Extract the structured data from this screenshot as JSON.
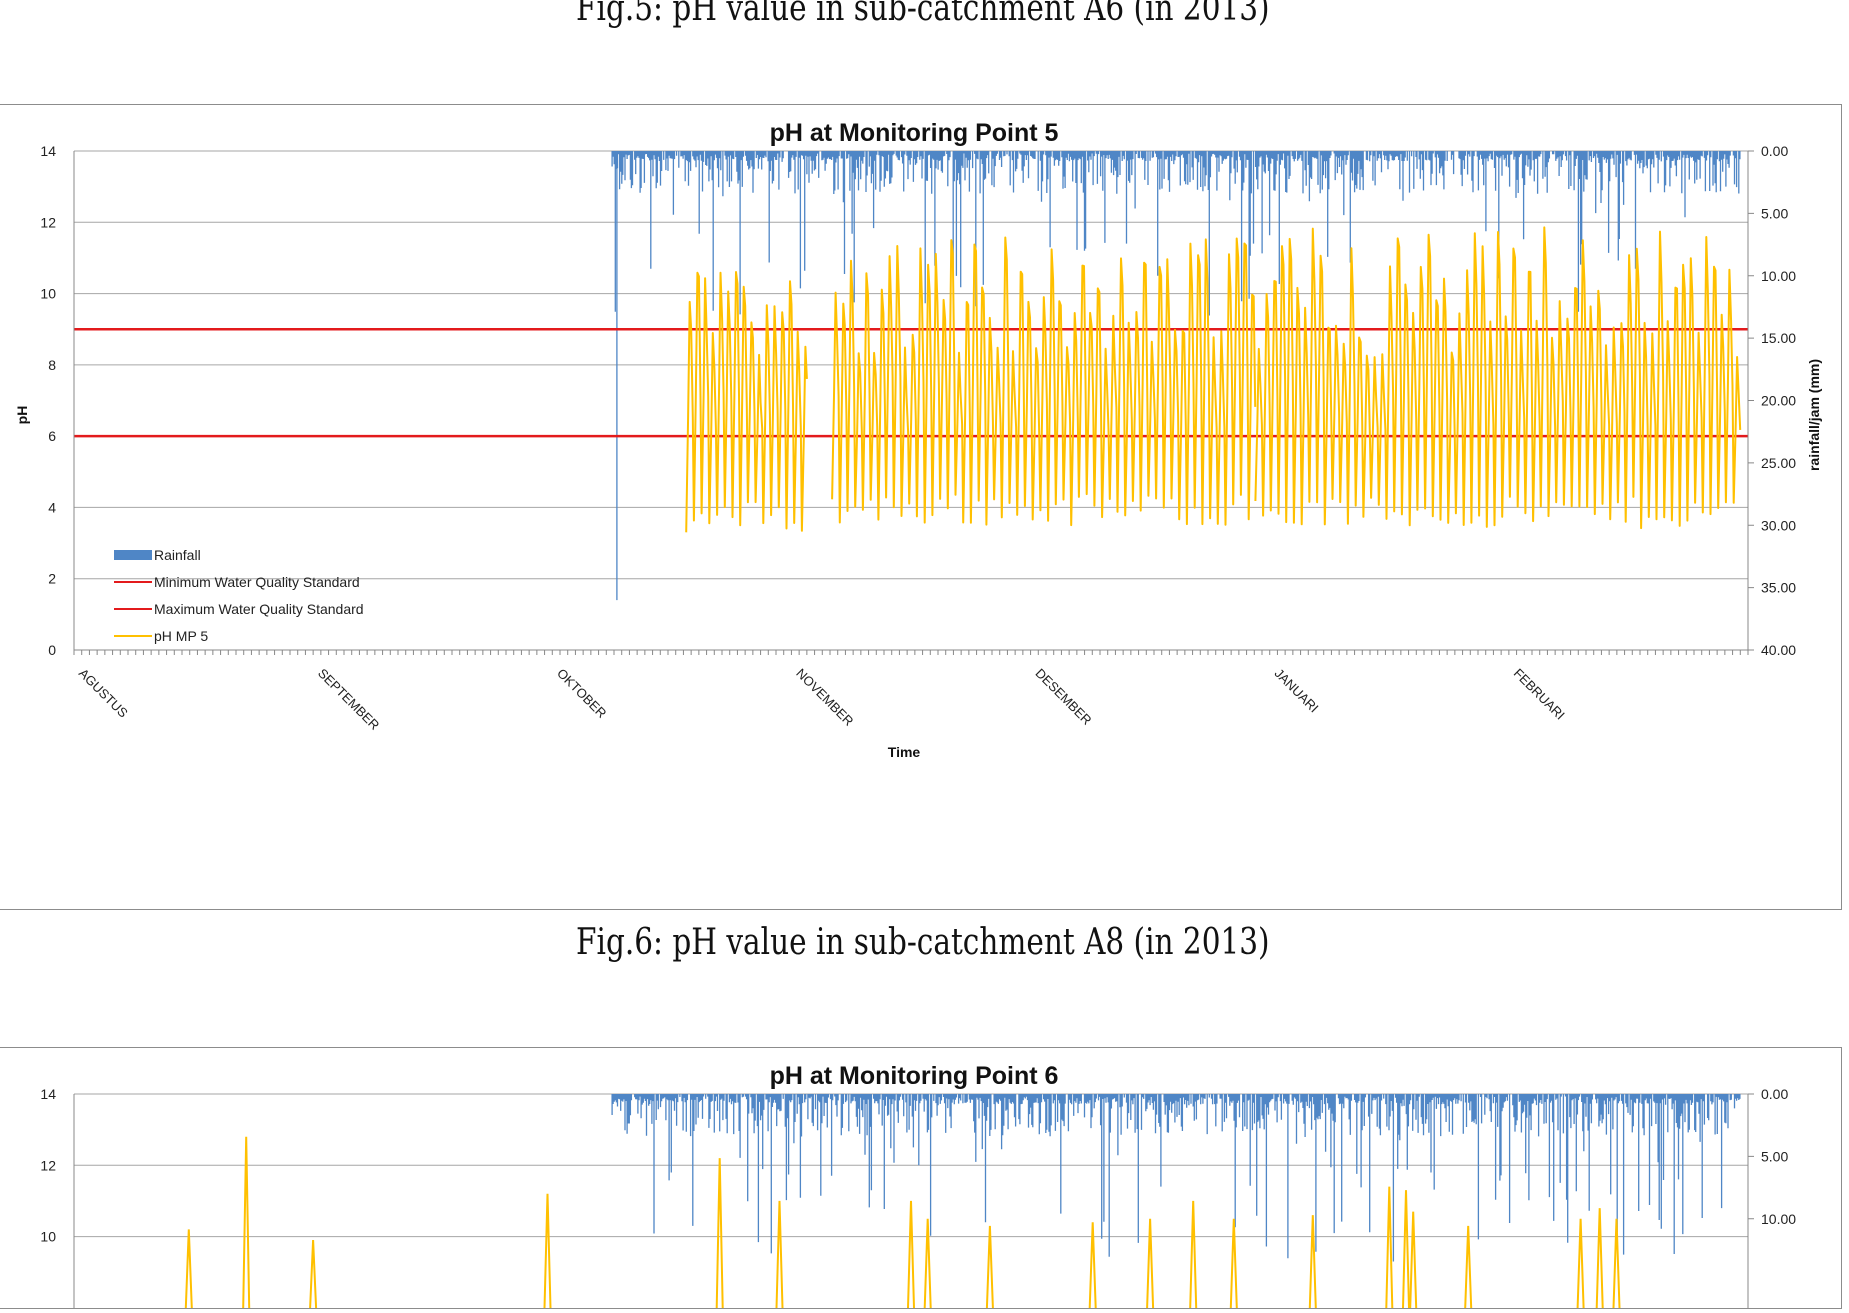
{
  "captions": {
    "top": "Fig.5: pH value in sub-catchment A6 (in 2013)",
    "middle": "Fig.6: pH value in sub-catchment A8 (in 2013)"
  },
  "chart_data": [
    {
      "type": "line",
      "title": "pH at Monitoring Point 5",
      "xlabel": "Time",
      "ylabel": "pH",
      "y2label": "rainfall/jam  (mm)",
      "ylim": [
        0,
        14
      ],
      "y2lim": [
        0,
        40
      ],
      "y2_inverted": true,
      "yticks": [
        "0",
        "2",
        "4",
        "6",
        "8",
        "10",
        "12",
        "14"
      ],
      "y2ticks": [
        "0.00",
        "5.00",
        "10.00",
        "15.00",
        "20.00",
        "25.00",
        "30.00",
        "35.00",
        "40.00"
      ],
      "categories": [
        "AGUSTUS",
        "SEPTEMBER",
        "OKTOBER",
        "NOVEMBER",
        "DESEMBER",
        "JANUARI",
        "FEBRUARI"
      ],
      "grid": true,
      "legend_position": "bottom-left",
      "colors": {
        "rainfall": "#4f86c6",
        "standard": "#e31a1c",
        "ph": "#ffc000",
        "grid": "#a6a6a6"
      },
      "series": [
        {
          "name": "Rainfall",
          "kind": "bar",
          "axis": "secondary",
          "start_month": 2.25,
          "end_month": 6.97,
          "typical_max_mm": 12,
          "notable_peaks": [
            {
              "month": 2.27,
              "mm": 36
            },
            {
              "month": 2.27,
              "mm": 11
            }
          ]
        },
        {
          "name": "Minimum Water Quality Standard",
          "kind": "line",
          "value": 6
        },
        {
          "name": "Maximum Water Quality Standard",
          "kind": "line",
          "value": 9
        },
        {
          "name": "pH MP 5",
          "kind": "line",
          "segments": [
            {
              "start_month": 2.56,
              "end_month": 3.07,
              "min": 3.3,
              "max": 10.8
            },
            {
              "start_month": 3.17,
              "end_month": 4.94,
              "min": 3.5,
              "max": 11.6
            },
            {
              "start_month": 4.94,
              "end_month": 6.97,
              "min": 3.4,
              "max": 12.0
            }
          ]
        }
      ]
    },
    {
      "type": "line",
      "title": "pH at Monitoring Point 6",
      "ylim": [
        0,
        14
      ],
      "y2lim": [
        0,
        40
      ],
      "y2_inverted": true,
      "yticks": [
        "10",
        "12",
        "14"
      ],
      "y2ticks": [
        "0.00",
        "5.00",
        "10.00"
      ],
      "grid": true,
      "series": [
        {
          "kind": "bar",
          "axis": "secondary",
          "start_month": 2.25,
          "end_month": 6.97,
          "typical_max_mm": 12
        },
        {
          "kind": "line",
          "spikes": [
            {
              "month": 0.48,
              "value": 10.2
            },
            {
              "month": 0.72,
              "value": 12.8
            },
            {
              "month": 1.0,
              "value": 9.9
            },
            {
              "month": 1.98,
              "value": 11.2
            },
            {
              "month": 2.7,
              "value": 12.2
            },
            {
              "month": 2.95,
              "value": 11.0
            },
            {
              "month": 3.5,
              "value": 11.0
            },
            {
              "month": 3.57,
              "value": 10.5
            },
            {
              "month": 3.83,
              "value": 10.3
            },
            {
              "month": 4.26,
              "value": 10.4
            },
            {
              "month": 4.5,
              "value": 10.5
            },
            {
              "month": 4.68,
              "value": 11.0
            },
            {
              "month": 4.85,
              "value": 10.5
            },
            {
              "month": 5.18,
              "value": 10.6
            },
            {
              "month": 5.5,
              "value": 11.4
            },
            {
              "month": 5.57,
              "value": 11.3
            },
            {
              "month": 5.6,
              "value": 10.7
            },
            {
              "month": 5.83,
              "value": 10.3
            },
            {
              "month": 6.3,
              "value": 10.5
            },
            {
              "month": 6.38,
              "value": 10.8
            },
            {
              "month": 6.45,
              "value": 10.5
            }
          ]
        }
      ]
    }
  ]
}
